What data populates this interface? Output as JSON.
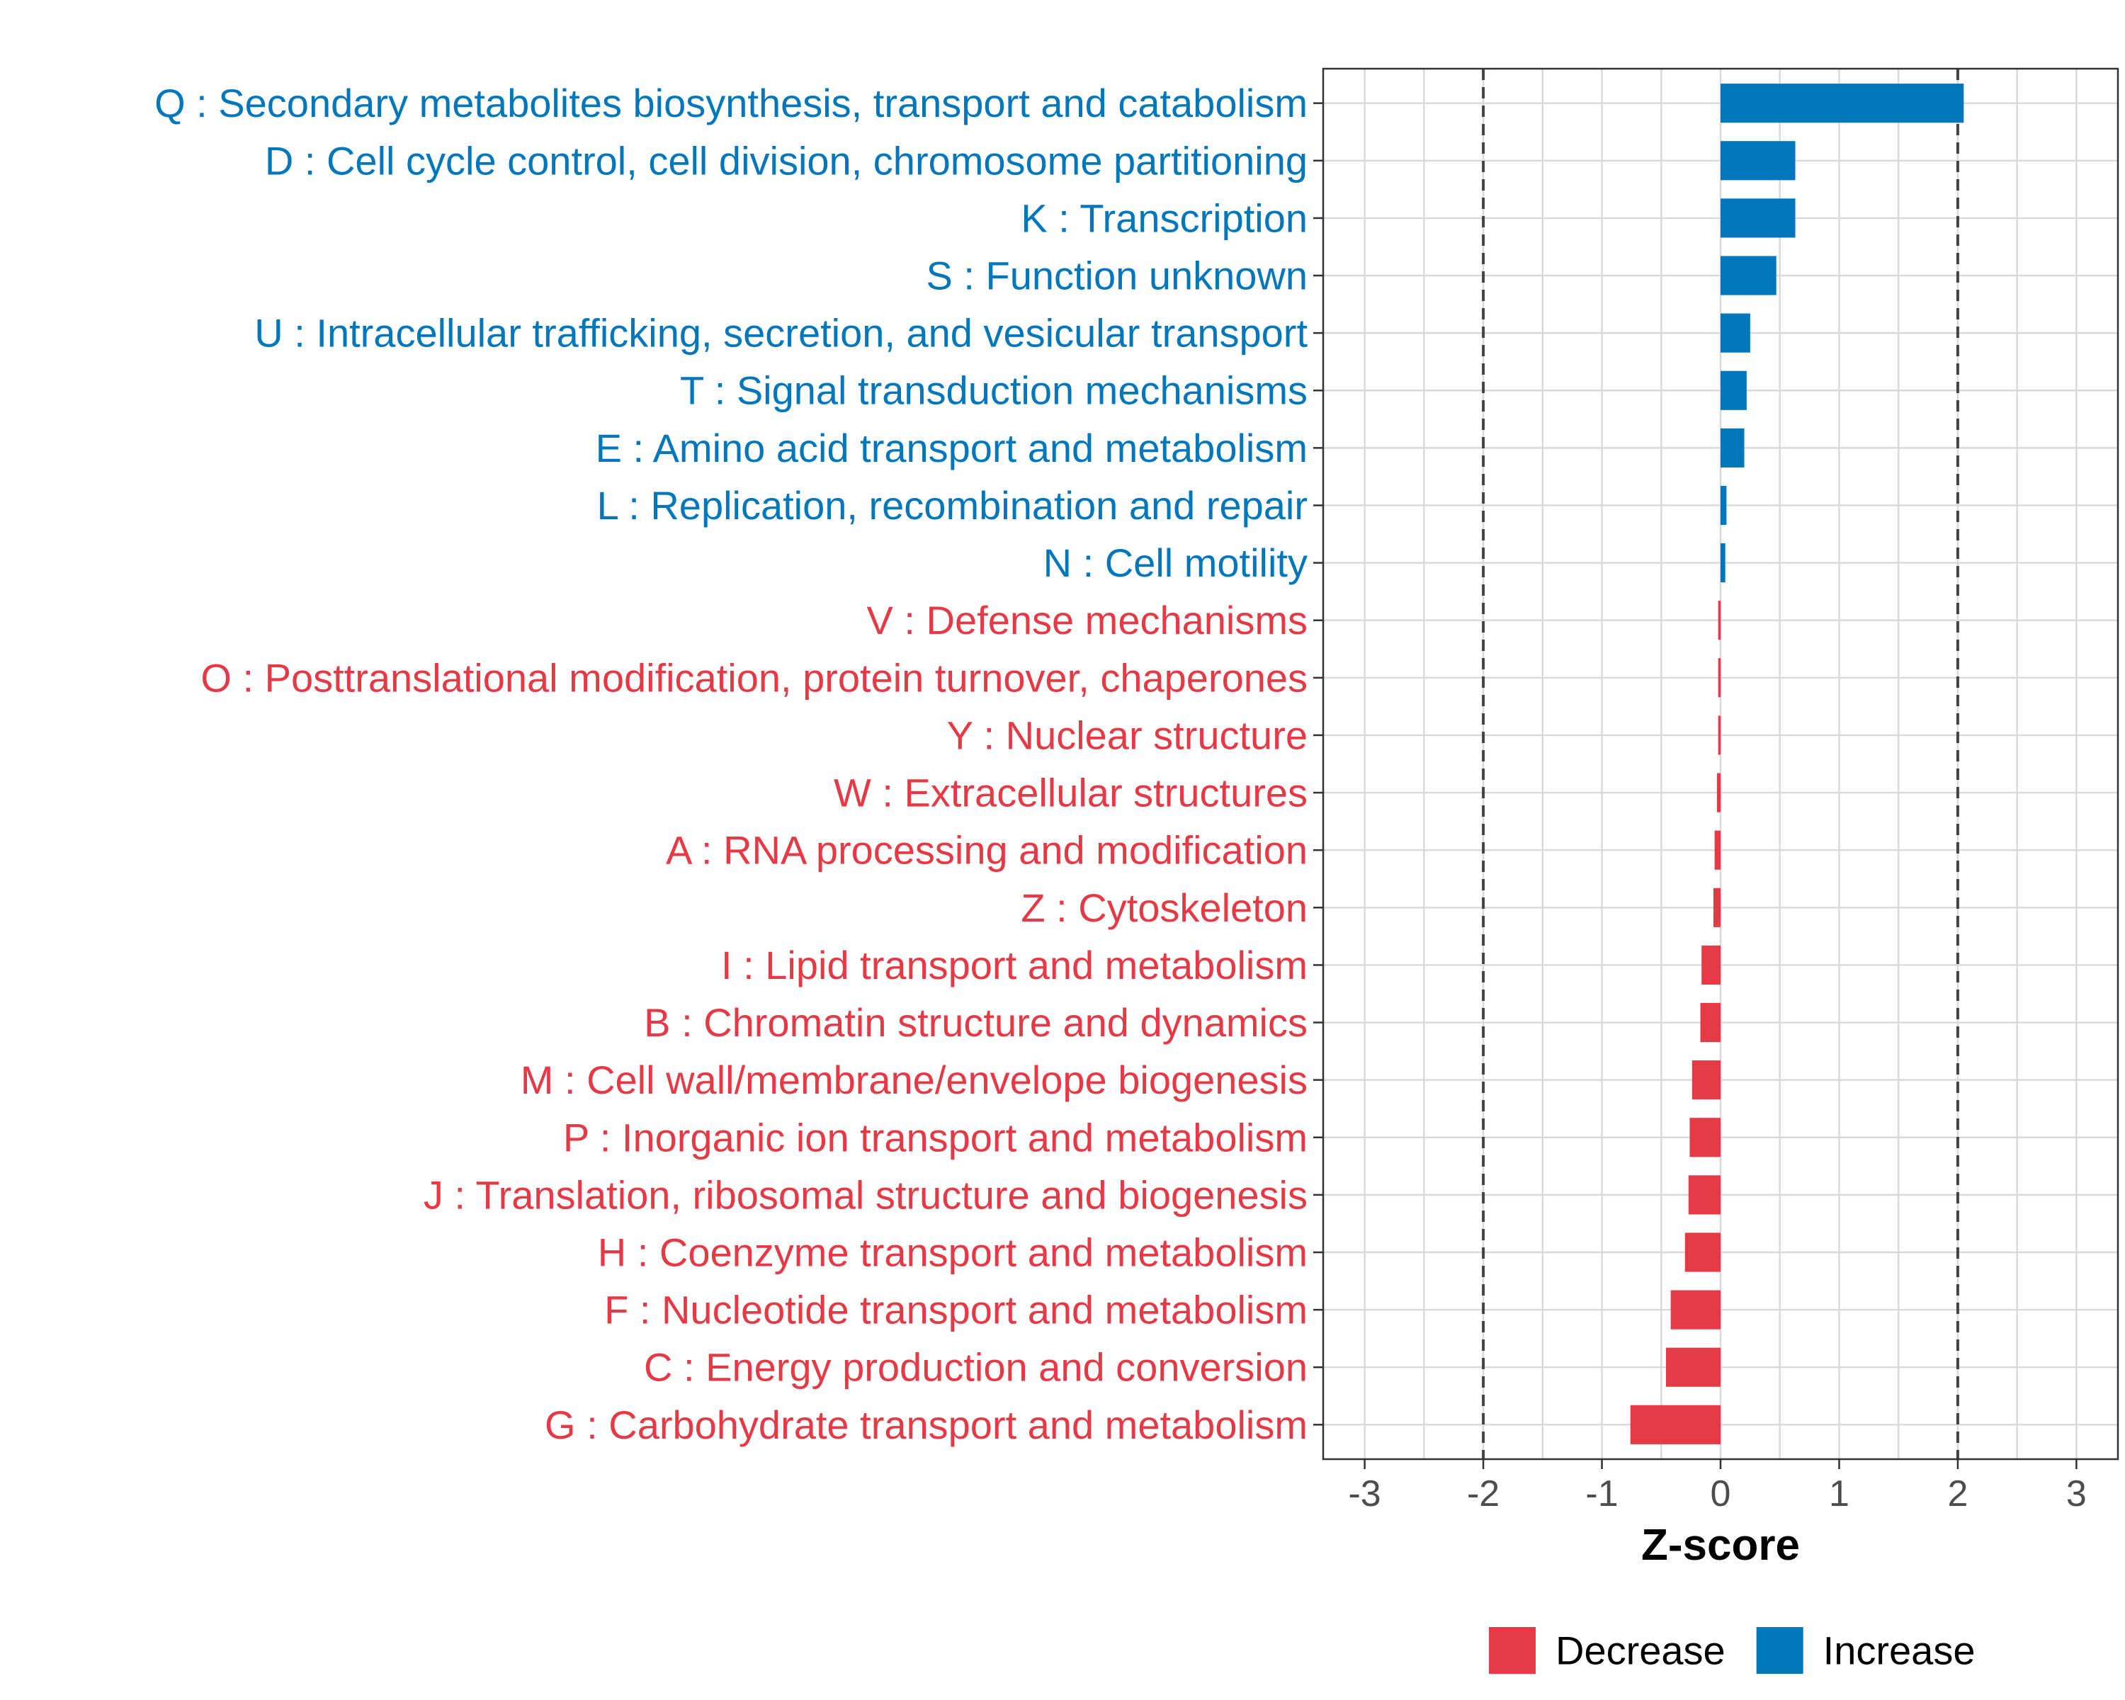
{
  "chart_data": {
    "type": "bar",
    "orientation": "horizontal",
    "title": "",
    "xlabel": "Z-score",
    "ylabel": "",
    "xlim": [
      -3.35,
      3.35
    ],
    "xticks": [
      -3,
      -2,
      -1,
      0,
      1,
      2,
      3
    ],
    "tick_labels": [
      "-3",
      "-2",
      "-1",
      "0",
      "1",
      "2",
      "3"
    ],
    "reference_lines": [
      -2,
      2
    ],
    "grid": true,
    "categories": [
      "Q : Secondary metabolites biosynthesis, transport and catabolism",
      "D : Cell cycle control, cell division, chromosome partitioning",
      "K : Transcription",
      "S : Function unknown",
      "U : Intracellular trafficking, secretion, and vesicular transport",
      "T : Signal transduction mechanisms",
      "E : Amino acid transport and metabolism",
      "L : Replication, recombination and repair",
      "N : Cell motility",
      "V : Defense mechanisms",
      "O : Posttranslational modification, protein turnover, chaperones",
      "Y : Nuclear structure",
      "W : Extracellular structures",
      "A : RNA processing and modification",
      "Z : Cytoskeleton",
      "I : Lipid transport and metabolism",
      "B : Chromatin structure and dynamics",
      "M : Cell wall/membrane/envelope biogenesis",
      "P : Inorganic ion transport and metabolism",
      "J : Translation, ribosomal structure and biogenesis",
      "H : Coenzyme transport and metabolism",
      "F : Nucleotide transport and metabolism",
      "C : Energy production and conversion",
      "G : Carbohydrate transport and metabolism"
    ],
    "values": [
      2.05,
      0.63,
      0.63,
      0.47,
      0.25,
      0.22,
      0.2,
      0.05,
      0.04,
      -0.02,
      -0.02,
      -0.02,
      -0.03,
      -0.05,
      -0.06,
      -0.16,
      -0.17,
      -0.24,
      -0.26,
      -0.27,
      -0.3,
      -0.42,
      -0.46,
      -0.76
    ],
    "groups": [
      "Increase",
      "Increase",
      "Increase",
      "Increase",
      "Increase",
      "Increase",
      "Increase",
      "Increase",
      "Increase",
      "Decrease",
      "Decrease",
      "Decrease",
      "Decrease",
      "Decrease",
      "Decrease",
      "Decrease",
      "Decrease",
      "Decrease",
      "Decrease",
      "Decrease",
      "Decrease",
      "Decrease",
      "Decrease",
      "Decrease"
    ],
    "legend": {
      "position": "bottom",
      "entries": [
        {
          "label": "Decrease",
          "color": "#E63946"
        },
        {
          "label": "Increase",
          "color": "#0077BB"
        }
      ]
    },
    "colors": {
      "Increase": "#0077BB",
      "Decrease": "#E63946",
      "grid": "#D9D9D9",
      "panel_border": "#333333",
      "reference_line": "#444444"
    }
  }
}
